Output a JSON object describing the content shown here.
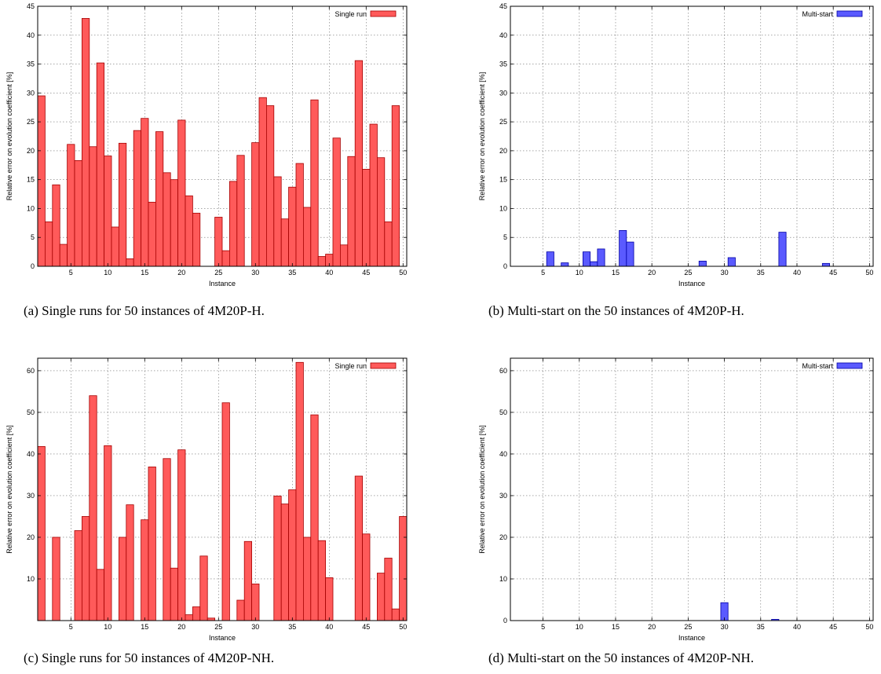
{
  "chart_data": [
    {
      "type": "bar",
      "caption": "(a) Single runs for 50 instances of 4M20P-H.",
      "xlabel": "Instance",
      "ylabel": "Relative error on evolution coefficient [%]",
      "ylim": [
        0,
        45
      ],
      "yticks": [
        0,
        5,
        10,
        15,
        20,
        25,
        30,
        35,
        40,
        45
      ],
      "xlim": [
        0.5,
        50.5
      ],
      "xticks": [
        5,
        10,
        15,
        20,
        25,
        30,
        35,
        40,
        45,
        50
      ],
      "grid": true,
      "legend_position": "top-right",
      "series": [
        {
          "name": "Single run",
          "color": "#ff5a5a",
          "x": [
            1,
            2,
            3,
            4,
            5,
            6,
            7,
            8,
            9,
            10,
            11,
            12,
            13,
            14,
            15,
            16,
            17,
            18,
            19,
            20,
            21,
            22,
            23,
            24,
            25,
            26,
            27,
            28,
            29,
            30,
            31,
            32,
            33,
            34,
            35,
            36,
            37,
            38,
            39,
            40,
            41,
            42,
            43,
            44,
            45,
            46,
            47,
            48,
            49,
            50
          ],
          "values": [
            29.5,
            7.7,
            14.1,
            3.8,
            21.1,
            18.3,
            42.9,
            20.7,
            35.2,
            19.1,
            6.8,
            21.3,
            1.3,
            23.5,
            25.6,
            11.1,
            23.3,
            16.2,
            15.0,
            25.3,
            12.2,
            9.2,
            0,
            0,
            8.5,
            2.7,
            14.7,
            19.2,
            0,
            21.4,
            29.2,
            27.8,
            15.5,
            8.2,
            13.7,
            17.8,
            10.2,
            28.8,
            1.7,
            2.1,
            22.2,
            3.7,
            19.0,
            35.6,
            16.8,
            24.6,
            18.8,
            7.7,
            27.8,
            0
          ]
        }
      ]
    },
    {
      "type": "bar",
      "caption": "(b) Multi-start on the 50 instances of 4M20P-H.",
      "xlabel": "Instance",
      "ylabel": "Relative error on evolution coefficient [%]",
      "ylim": [
        0,
        45
      ],
      "yticks": [
        0,
        5,
        10,
        15,
        20,
        25,
        30,
        35,
        40,
        45
      ],
      "xlim": [
        0.5,
        50.5
      ],
      "xticks": [
        5,
        10,
        15,
        20,
        25,
        30,
        35,
        40,
        45,
        50
      ],
      "grid": true,
      "legend_position": "top-right",
      "series": [
        {
          "name": "Multi-start",
          "color": "#5a5aff",
          "x": [
            1,
            2,
            3,
            4,
            5,
            6,
            7,
            8,
            9,
            10,
            11,
            12,
            13,
            14,
            15,
            16,
            17,
            18,
            19,
            20,
            21,
            22,
            23,
            24,
            25,
            26,
            27,
            28,
            29,
            30,
            31,
            32,
            33,
            34,
            35,
            36,
            37,
            38,
            39,
            40,
            41,
            42,
            43,
            44,
            45,
            46,
            47,
            48,
            49,
            50
          ],
          "values": [
            0,
            0,
            0,
            0,
            0,
            2.5,
            0,
            0.6,
            0,
            0,
            2.5,
            0.8,
            3.0,
            0,
            0,
            6.2,
            4.2,
            0,
            0,
            0,
            0,
            0,
            0,
            0,
            0,
            0,
            0.9,
            0,
            0,
            0,
            1.5,
            0,
            0,
            0,
            0,
            0,
            0,
            5.9,
            0,
            0,
            0,
            0,
            0,
            0.5,
            0,
            0,
            0,
            0,
            0,
            0
          ]
        }
      ]
    },
    {
      "type": "bar",
      "caption": "(c) Single runs for 50 instances of 4M20P-NH.",
      "xlabel": "Instance",
      "ylabel": "Relative error on evolution coefficient [%]",
      "ylim": [
        0,
        63
      ],
      "yticks": [
        10,
        20,
        30,
        40,
        50,
        60
      ],
      "xlim": [
        0.5,
        50.5
      ],
      "xticks": [
        5,
        10,
        15,
        20,
        25,
        30,
        35,
        40,
        45,
        50
      ],
      "grid": true,
      "legend_position": "top-right",
      "series": [
        {
          "name": "Single run",
          "color": "#ff5a5a",
          "x": [
            1,
            2,
            3,
            4,
            5,
            6,
            7,
            8,
            9,
            10,
            11,
            12,
            13,
            14,
            15,
            16,
            17,
            18,
            19,
            20,
            21,
            22,
            23,
            24,
            25,
            26,
            27,
            28,
            29,
            30,
            31,
            32,
            33,
            34,
            35,
            36,
            37,
            38,
            39,
            40,
            41,
            42,
            43,
            44,
            45,
            46,
            47,
            48,
            49,
            50
          ],
          "values": [
            41.8,
            0,
            20.0,
            0,
            0,
            21.6,
            25.0,
            54.0,
            12.3,
            42.0,
            0,
            20.0,
            27.8,
            0,
            24.2,
            36.9,
            0,
            38.9,
            12.6,
            41.0,
            1.4,
            3.3,
            15.5,
            0.6,
            0,
            52.3,
            0,
            4.9,
            19.0,
            8.8,
            0,
            0,
            29.9,
            28.0,
            31.4,
            62.0,
            20.0,
            49.4,
            19.2,
            10.3,
            0,
            0,
            0,
            34.7,
            20.8,
            0,
            11.4,
            15.0,
            2.8,
            25.0
          ]
        }
      ]
    },
    {
      "type": "bar",
      "caption": "(d) Multi-start on the 50 instances of 4M20P-NH.",
      "xlabel": "Instance",
      "ylabel": "Relative error on evolution coefficient [%]",
      "ylim": [
        0,
        63
      ],
      "yticks": [
        0,
        10,
        20,
        30,
        40,
        50,
        60
      ],
      "xlim": [
        0.5,
        50.5
      ],
      "xticks": [
        5,
        10,
        15,
        20,
        25,
        30,
        35,
        40,
        45,
        50
      ],
      "grid": true,
      "legend_position": "top-right",
      "series": [
        {
          "name": "Multi-start",
          "color": "#5a5aff",
          "x": [
            1,
            2,
            3,
            4,
            5,
            6,
            7,
            8,
            9,
            10,
            11,
            12,
            13,
            14,
            15,
            16,
            17,
            18,
            19,
            20,
            21,
            22,
            23,
            24,
            25,
            26,
            27,
            28,
            29,
            30,
            31,
            32,
            33,
            34,
            35,
            36,
            37,
            38,
            39,
            40,
            41,
            42,
            43,
            44,
            45,
            46,
            47,
            48,
            49,
            50
          ],
          "values": [
            0,
            0,
            0,
            0,
            0,
            0,
            0,
            0,
            0,
            0,
            0,
            0,
            0,
            0,
            0,
            0,
            0,
            0,
            0,
            0,
            0,
            0,
            0,
            0,
            0,
            0,
            0,
            0,
            0,
            4.3,
            0,
            0,
            0,
            0,
            0,
            0,
            0.3,
            0,
            0,
            0,
            0,
            0,
            0,
            0,
            0,
            0,
            0,
            0,
            0,
            0
          ]
        }
      ]
    }
  ]
}
